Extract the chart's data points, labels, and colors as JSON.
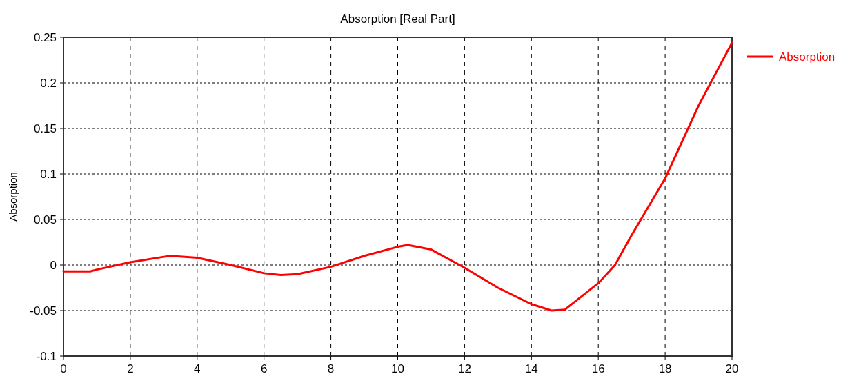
{
  "chart_data": {
    "type": "line",
    "title": "Absorption [Real Part]",
    "ylabel": "Absorption",
    "x": [
      0,
      0.8,
      1,
      2,
      3,
      3.2,
      4,
      5,
      6,
      6.5,
      7,
      8,
      9,
      10,
      10.3,
      11,
      12,
      13,
      14,
      14.6,
      15,
      16,
      16.5,
      17,
      18,
      19,
      20
    ],
    "series": [
      {
        "name": "Absorption",
        "color": "#ff0000",
        "values": [
          -0.007,
          -0.007,
          -0.005,
          0.003,
          0.009,
          0.01,
          0.008,
          0,
          -0.009,
          -0.011,
          -0.01,
          -0.002,
          0.01,
          0.02,
          0.022,
          0.017,
          -0.003,
          -0.025,
          -0.043,
          -0.05,
          -0.049,
          -0.02,
          0,
          0.033,
          0.095,
          0.175,
          0.244
        ]
      }
    ],
    "xlim": [
      0,
      20
    ],
    "xticks": [
      0,
      2,
      4,
      6,
      8,
      10,
      12,
      14,
      16,
      18,
      20
    ],
    "ylim": [
      -0.1,
      0.25
    ],
    "yticks": [
      -0.1,
      -0.05,
      0,
      0.05,
      0.1,
      0.15,
      0.2,
      0.25
    ],
    "grid": true,
    "legend": "right",
    "marker": "none",
    "line_style": "solid"
  }
}
